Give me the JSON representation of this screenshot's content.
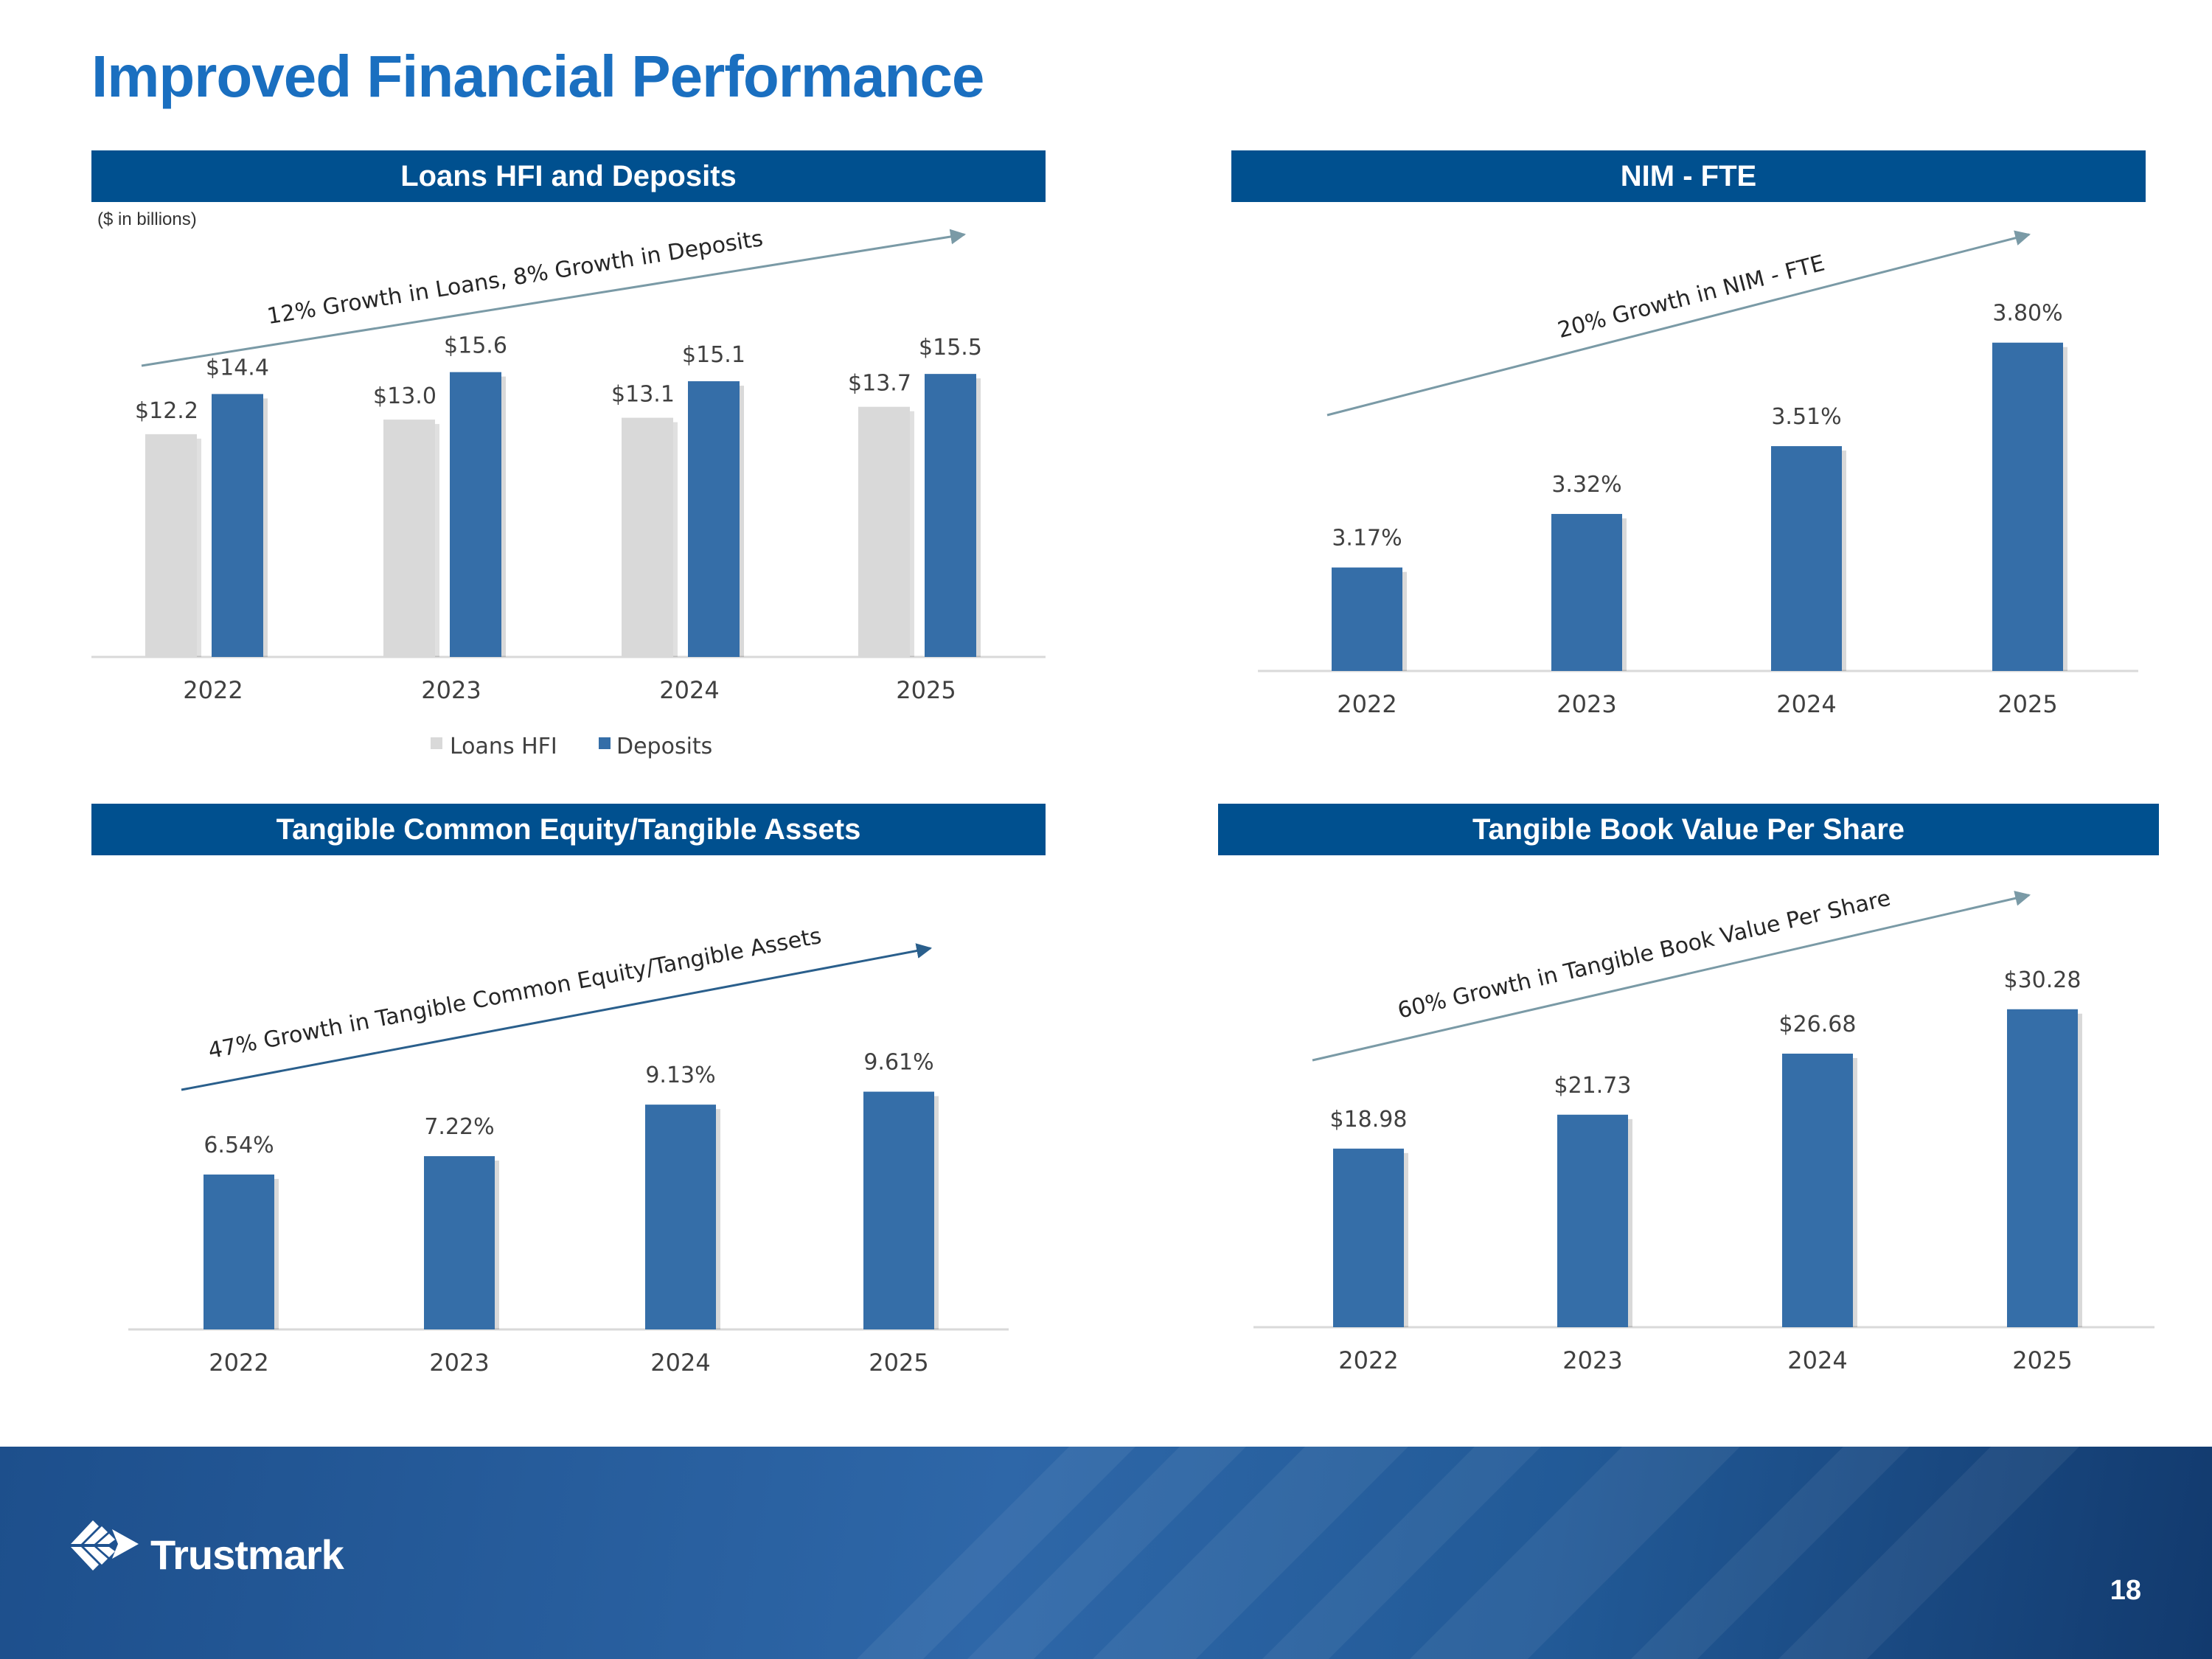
{
  "page_title": "Improved Financial Performance",
  "footer": {
    "brand": "Trustmark",
    "page_number": "18"
  },
  "colors": {
    "deposits": "#356ea8",
    "loans": "#d9d9d9",
    "header": "#00508f",
    "title": "#1a6fc0"
  },
  "chart_data": [
    {
      "type": "bar",
      "title": "Loans HFI and Deposits",
      "unit_note": "($ in billions)",
      "annotation": "12% Growth in Loans, 8% Growth in Deposits",
      "categories": [
        "2022",
        "2023",
        "2024",
        "2025"
      ],
      "series": [
        {
          "name": "Loans HFI",
          "values": [
            12.2,
            13.0,
            13.1,
            13.7
          ],
          "labels": [
            "$12.2",
            "$13.0",
            "$13.1",
            "$13.7"
          ]
        },
        {
          "name": "Deposits",
          "values": [
            14.4,
            15.6,
            15.1,
            15.5
          ],
          "labels": [
            "$14.4",
            "$15.6",
            "$15.1",
            "$15.5"
          ]
        }
      ],
      "legend": [
        "Loans HFI",
        "Deposits"
      ],
      "ylim": [
        0,
        17
      ]
    },
    {
      "type": "bar",
      "title": "NIM - FTE",
      "annotation": "20% Growth in NIM - FTE",
      "categories": [
        "2022",
        "2023",
        "2024",
        "2025"
      ],
      "series": [
        {
          "name": "NIM - FTE",
          "values": [
            3.17,
            3.32,
            3.51,
            3.8
          ],
          "labels": [
            "3.17%",
            "3.32%",
            "3.51%",
            "3.80%"
          ]
        }
      ],
      "ylim": [
        2.88,
        3.88
      ]
    },
    {
      "type": "bar",
      "title": "Tangible Common Equity/Tangible Assets",
      "annotation": "47% Growth in Tangible Common Equity/Tangible Assets",
      "categories": [
        "2022",
        "2023",
        "2024",
        "2025"
      ],
      "series": [
        {
          "name": "Tangible Common Equity/Tangible Assets",
          "values": [
            6.54,
            7.22,
            9.13,
            9.61
          ],
          "labels": [
            "6.54%",
            "7.22%",
            "9.13%",
            "9.61%"
          ]
        }
      ],
      "ylim": [
        0.8,
        10.5
      ]
    },
    {
      "type": "bar",
      "title": "Tangible Book Value Per Share",
      "annotation": "60% Growth in Tangible Book Value Per Share",
      "categories": [
        "2022",
        "2023",
        "2024",
        "2025"
      ],
      "series": [
        {
          "name": "Tangible Book Value Per Share",
          "values": [
            18.98,
            21.73,
            26.68,
            30.28
          ],
          "labels": [
            "$18.98",
            "$21.73",
            "$26.68",
            "$30.28"
          ]
        }
      ],
      "ylim": [
        4.5,
        32
      ]
    }
  ]
}
